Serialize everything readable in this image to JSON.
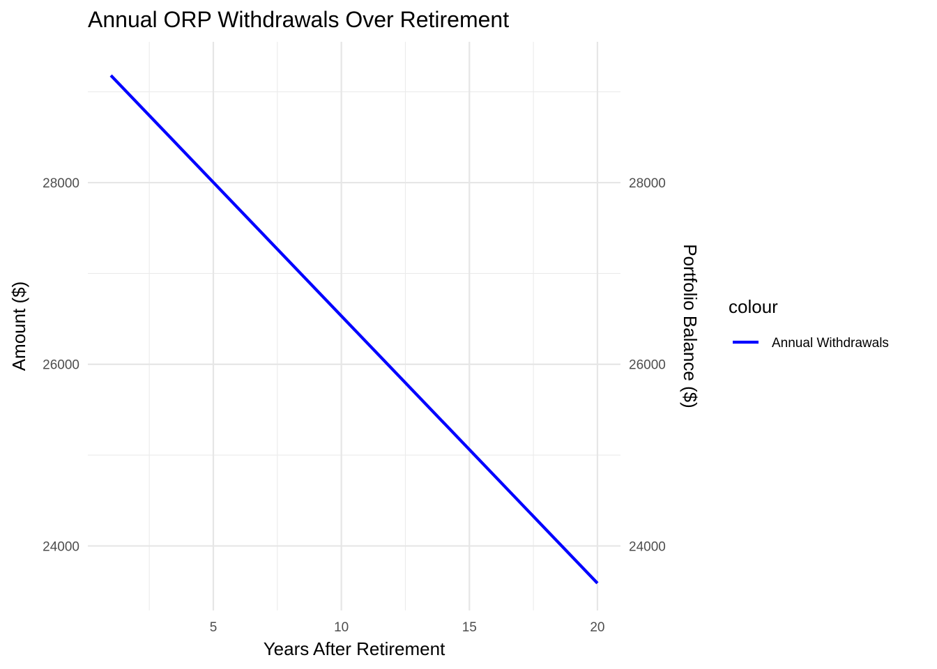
{
  "chart_data": {
    "type": "line",
    "title": "Annual ORP Withdrawals Over Retirement",
    "xlabel": "Years After Retirement",
    "ylabel": "Amount ($)",
    "y2label": "Portfolio Balance ($)",
    "xlim": [
      0.1,
      20.9
    ],
    "ylim": [
      23290,
      29550
    ],
    "x_ticks": [
      5,
      10,
      15,
      20
    ],
    "x_ticks_text": [
      "5",
      "10",
      "15",
      "20"
    ],
    "x_minor_ticks": [
      2.5,
      7.5,
      12.5,
      17.5
    ],
    "y_ticks": [
      24000,
      26000,
      28000
    ],
    "y_ticks_text": [
      "24000",
      "26000",
      "28000"
    ],
    "y_minor_ticks": [
      25000,
      27000,
      29000
    ],
    "y2_ticks_text": [
      "24000",
      "26000",
      "28000"
    ],
    "grid": true,
    "legend": {
      "title": "colour",
      "position": "right"
    },
    "series": [
      {
        "name": "Annual Withdrawals",
        "color": "#0000FF",
        "x": [
          1,
          20
        ],
        "y": [
          29180,
          23590
        ]
      }
    ]
  }
}
